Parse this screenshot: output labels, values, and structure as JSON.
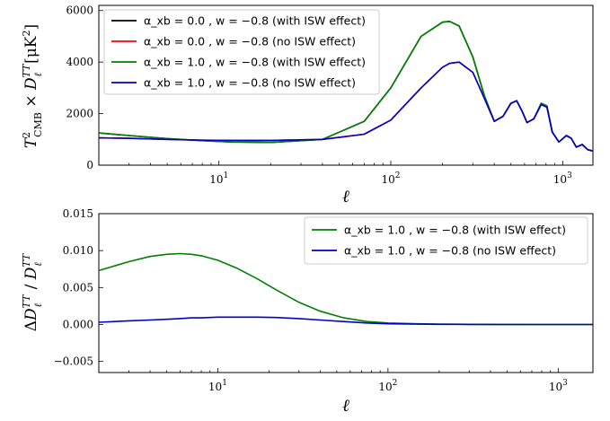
{
  "chart_data": [
    {
      "type": "line",
      "xscale": "log",
      "xlim": [
        2,
        1500
      ],
      "ylim": [
        0,
        6200
      ],
      "xticks": [
        10,
        100,
        1000
      ],
      "xtick_labels": [
        "10^1",
        "10^2",
        "10^3"
      ],
      "yticks": [
        0,
        2000,
        4000,
        6000
      ],
      "ytick_labels": [
        "0",
        "2000",
        "4000",
        "6000"
      ],
      "xlabel": "ℓ",
      "ylabel": "T²_CMB × D_ℓ^TT [μK²]",
      "legend_position": "upper-left",
      "x": [
        2,
        3,
        5,
        8,
        12,
        20,
        40,
        70,
        100,
        150,
        200,
        220,
        250,
        300,
        350,
        400,
        450,
        500,
        540,
        580,
        620,
        680,
        750,
        810,
        870,
        950,
        1050,
        1120,
        1200,
        1300,
        1400,
        1500
      ],
      "series": [
        {
          "name": "α_xb = 0.0 , w = −0.8 (with ISW effect)",
          "color": "#000000",
          "values": [
            1250,
            1150,
            1030,
            950,
            900,
            880,
            1000,
            1700,
            3000,
            5000,
            5550,
            5580,
            5400,
            4200,
            2700,
            1700,
            1900,
            2400,
            2500,
            2100,
            1650,
            1800,
            2400,
            2300,
            1300,
            900,
            1150,
            1050,
            700,
            800,
            600,
            550
          ]
        },
        {
          "name": "α_xb = 0.0 , w = −0.8 (no ISW effect)",
          "color": "#ff0000",
          "values": [
            1060,
            1040,
            1000,
            970,
            960,
            960,
            1000,
            1200,
            1750,
            3000,
            3800,
            3950,
            4000,
            3600,
            2600,
            1700,
            1900,
            2400,
            2500,
            2100,
            1650,
            1800,
            2350,
            2250,
            1280,
            900,
            1150,
            1050,
            700,
            800,
            600,
            550
          ]
        },
        {
          "name": "α_xb = 1.0 , w = −0.8 (with ISW effect)",
          "color": "#008000",
          "values": [
            1250,
            1150,
            1030,
            950,
            900,
            880,
            1000,
            1700,
            3000,
            5000,
            5550,
            5580,
            5400,
            4200,
            2700,
            1700,
            1900,
            2400,
            2500,
            2100,
            1650,
            1800,
            2400,
            2300,
            1300,
            900,
            1150,
            1050,
            700,
            800,
            600,
            550
          ]
        },
        {
          "name": "α_xb = 1.0 , w = −0.8 (no ISW effect)",
          "color": "#0000cc",
          "values": [
            1060,
            1040,
            1000,
            970,
            960,
            960,
            1000,
            1200,
            1750,
            3000,
            3800,
            3950,
            4000,
            3600,
            2600,
            1700,
            1900,
            2400,
            2500,
            2100,
            1650,
            1800,
            2350,
            2250,
            1280,
            900,
            1150,
            1050,
            700,
            800,
            600,
            550
          ]
        }
      ]
    },
    {
      "type": "line",
      "xscale": "log",
      "xlim": [
        2,
        1600
      ],
      "ylim": [
        -0.0065,
        0.015
      ],
      "xticks": [
        10,
        100,
        1000
      ],
      "xtick_labels": [
        "10^1",
        "10^2",
        "10^3"
      ],
      "yticks": [
        -0.005,
        0.0,
        0.005,
        0.01,
        0.015
      ],
      "ytick_labels": [
        "−0.005",
        "0.000",
        "0.005",
        "0.010",
        "0.015"
      ],
      "xlabel": "ℓ",
      "ylabel": "ΔD_ℓ^TT / D_ℓ^TT",
      "legend_position": "upper-right",
      "x": [
        2,
        3,
        4,
        5,
        6,
        7,
        8,
        10,
        13,
        17,
        22,
        30,
        40,
        55,
        75,
        100,
        150,
        200,
        300,
        500,
        800,
        1000,
        1300,
        1600
      ],
      "series": [
        {
          "name": "α_xb = 1.0 , w = −0.8 (with ISW effect)",
          "color": "#008000",
          "values": [
            0.0073,
            0.0085,
            0.0092,
            0.0095,
            0.0096,
            0.0095,
            0.0093,
            0.0087,
            0.0076,
            0.0062,
            0.0047,
            0.003,
            0.0018,
            0.0009,
            0.0004,
            0.0002,
            0.0001,
            5e-05,
            2e-05,
            1e-05,
            0.0,
            0.0,
            0.0,
            0.0
          ]
        },
        {
          "name": "α_xb = 1.0 , w = −0.8 (no ISW effect)",
          "color": "#0000cc",
          "values": [
            0.0003,
            0.0005,
            0.0006,
            0.0007,
            0.0008,
            0.0009,
            0.0009,
            0.001,
            0.001,
            0.001,
            0.00095,
            0.0008,
            0.0006,
            0.0004,
            0.0002,
            0.0001,
            5e-05,
            2e-05,
            1e-05,
            0.0,
            0.0,
            0.0,
            0.0,
            0.0
          ]
        }
      ]
    }
  ]
}
